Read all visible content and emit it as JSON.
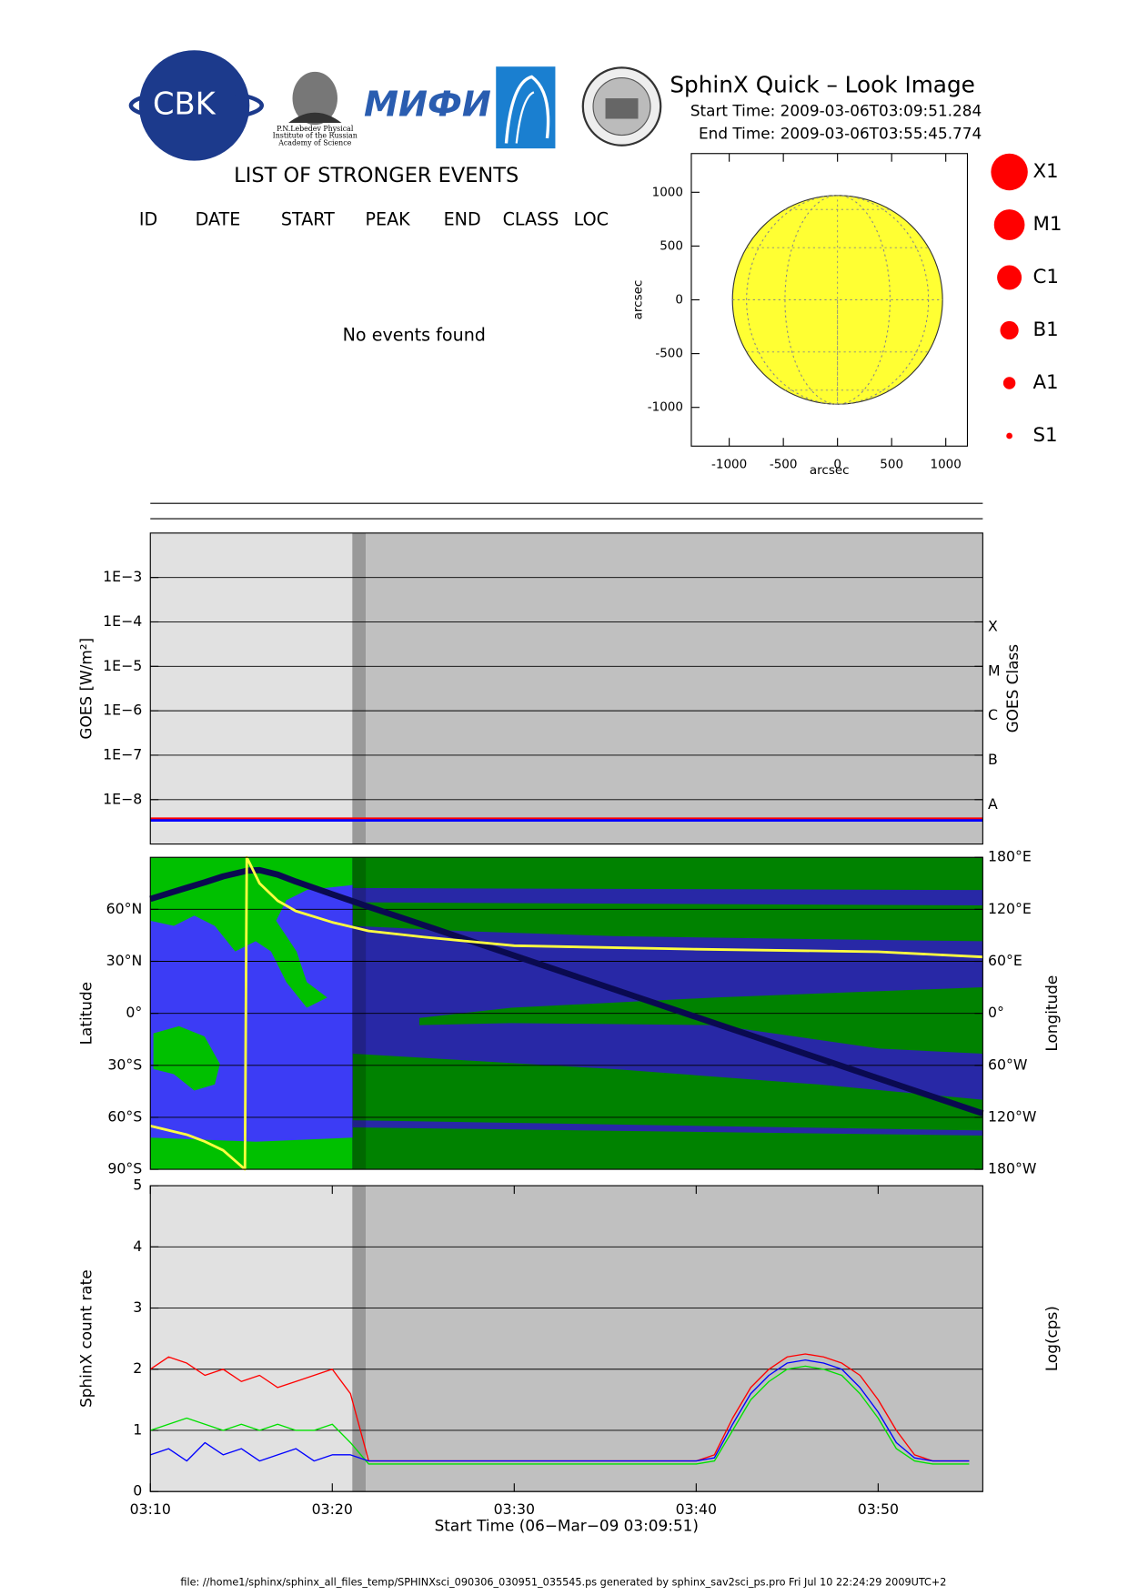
{
  "logos": {
    "cbk": "CBK",
    "lebedev": [
      "P.N.Lebedev Physical",
      "Institute of the Russian",
      "Academy of Science"
    ],
    "mifi": "МИФИ"
  },
  "header": {
    "title": "SphinX Quick – Look Image",
    "start": "Start Time: 2009-03-06T03:09:51.284",
    "end": "End Time: 2009-03-06T03:55:45.774"
  },
  "events": {
    "title": "LIST OF STRONGER EVENTS",
    "columns": [
      "ID",
      "DATE",
      "START",
      "PEAK",
      "END",
      "CLASS",
      "LOC"
    ],
    "message": "No events found"
  },
  "flare_legend": {
    "labels": [
      "X1",
      "M1",
      "C1",
      "B1",
      "A1",
      "S1"
    ],
    "color": "#ff0000"
  },
  "footer": "file: //home1/sphinx/sphinx_all_files_temp/SPHINXsci_090306_030951_035545.ps generated by sphinx_sav2sci_ps.pro Fri Jul 10 22:24:29 2009UTC+2",
  "chart_data": [
    {
      "type": "disk",
      "xlabel": "arcsec",
      "ylabel": "arcsec",
      "xlim": [
        -1350,
        1200
      ],
      "ylim": [
        -1360,
        1360
      ],
      "xticks": [
        -1000,
        -500,
        0,
        500,
        1000
      ],
      "yticks": [
        -1000,
        -500,
        0,
        500,
        1000
      ],
      "sun_radius": 970,
      "color": "#ffff33"
    },
    {
      "type": "line",
      "ylabel": "GOES [W/m²]",
      "y2label": "GOES Class",
      "log_y": true,
      "grid": true,
      "xlim": [
        10,
        55.75
      ],
      "ylim": [
        1e-09,
        0.01
      ],
      "yticks": [
        {
          "value": 1e-08,
          "label": "1E−8"
        },
        {
          "value": 1e-07,
          "label": "1E−7"
        },
        {
          "value": 1e-06,
          "label": "1E−6"
        },
        {
          "value": 1e-05,
          "label": "1E−5"
        },
        {
          "value": 0.0001,
          "label": "1E−4"
        },
        {
          "value": 0.001,
          "label": "1E−3"
        }
      ],
      "class_ticks": [
        {
          "value": 1e-08,
          "label": "A"
        },
        {
          "value": 1e-07,
          "label": "B"
        },
        {
          "value": 1e-06,
          "label": "C"
        },
        {
          "value": 1e-05,
          "label": "M"
        },
        {
          "value": 0.0001,
          "label": "X"
        }
      ],
      "shading": [
        {
          "start": 10,
          "end": 21.1,
          "color": "#e1e1e1"
        },
        {
          "start": 21.1,
          "end": 21.85,
          "color": "#999999"
        },
        {
          "start": 21.85,
          "end": 55.75,
          "color": "#c0c0c0"
        }
      ],
      "x": [
        10,
        20,
        30,
        40,
        50,
        55.75
      ],
      "series": [
        {
          "color": "#ff0000",
          "values": [
            3.7e-09,
            3.7e-09,
            3.7e-09,
            3.7e-09,
            3.7e-09,
            3.7e-09
          ]
        },
        {
          "color": "#0000ff",
          "values": [
            3.4e-09,
            3.4e-09,
            3.4e-09,
            3.4e-09,
            3.4e-09,
            3.4e-09
          ]
        }
      ]
    },
    {
      "type": "line",
      "ylabel": "Latitude",
      "y2label": "Longitude",
      "grid": true,
      "xlim": [
        10,
        55.75
      ],
      "ylim": [
        -90,
        90
      ],
      "y2lim": [
        -180,
        180
      ],
      "yticks": [
        {
          "value": -90,
          "label": "90°S"
        },
        {
          "value": -60,
          "label": "60°S"
        },
        {
          "value": -30,
          "label": "30°S"
        },
        {
          "value": 0,
          "label": "0°"
        },
        {
          "value": 30,
          "label": "30°N"
        },
        {
          "value": 60,
          "label": "60°N"
        }
      ],
      "y2ticks": [
        {
          "value": -180,
          "label": "180°W"
        },
        {
          "value": -120,
          "label": "120°W"
        },
        {
          "value": -60,
          "label": "60°W"
        },
        {
          "value": 0,
          "label": "0°"
        },
        {
          "value": 60,
          "label": "60°E"
        },
        {
          "value": 120,
          "label": "120°E"
        },
        {
          "value": 180,
          "label": "180°E"
        }
      ],
      "shading": [
        {
          "start": 21.1,
          "end": 21.85,
          "color": "#000000",
          "opacity": 0.45
        },
        {
          "start": 21.85,
          "end": 55.75,
          "color": "#000000",
          "opacity": 0.32
        }
      ],
      "x": [
        10,
        12,
        13,
        14,
        15.2,
        15.3,
        16,
        17,
        18,
        20,
        22,
        25,
        30,
        40,
        50,
        55.75
      ],
      "series": [
        {
          "color": "#0a0a50",
          "values": [
            66,
            72.5,
            75.6,
            79,
            82,
            82.3,
            82.6,
            80,
            76,
            68.7,
            61.5,
            51,
            33.3,
            -2.1,
            -37.5,
            -57.8
          ]
        },
        {
          "color": "#ffff40",
          "axis": "y2",
          "values": [
            -130,
            -140,
            -148,
            -158,
            -180,
            180,
            150,
            130,
            118,
            105,
            95,
            88,
            78,
            74,
            71,
            65
          ]
        }
      ]
    },
    {
      "type": "line",
      "ylabel": "SphinX count rate",
      "y2label": "Log(cps)",
      "xlabel": "Start Time (06−Mar−09 03:09:51)",
      "grid": true,
      "xlim": [
        10,
        55.75
      ],
      "ylim": [
        0,
        5
      ],
      "yticks": [
        0,
        1,
        2,
        3,
        4,
        5
      ],
      "xticks": [
        {
          "value": 10,
          "label": "03:10"
        },
        {
          "value": 20,
          "label": "03:20"
        },
        {
          "value": 30,
          "label": "03:30"
        },
        {
          "value": 40,
          "label": "03:40"
        },
        {
          "value": 50,
          "label": "03:50"
        }
      ],
      "shading": [
        {
          "start": 10,
          "end": 21.1,
          "color": "#e1e1e1"
        },
        {
          "start": 21.1,
          "end": 21.85,
          "color": "#999999"
        },
        {
          "start": 21.85,
          "end": 55.75,
          "color": "#c0c0c0"
        }
      ],
      "x": [
        10,
        11,
        12,
        13,
        14,
        15,
        16,
        17,
        18,
        19,
        20,
        21,
        22,
        23,
        24,
        25,
        26,
        27,
        28,
        29,
        30,
        31,
        32,
        33,
        34,
        35,
        36,
        37,
        38,
        39,
        40,
        41,
        42,
        43,
        44,
        45,
        46,
        47,
        48,
        49,
        50,
        51,
        52,
        53,
        54,
        55
      ],
      "series": [
        {
          "color": "#ff0000",
          "values": [
            2.0,
            2.2,
            2.1,
            1.9,
            2.0,
            1.8,
            1.9,
            1.7,
            1.8,
            1.9,
            2.0,
            1.6,
            0.5,
            0.5,
            0.5,
            0.5,
            0.5,
            0.5,
            0.5,
            0.5,
            0.5,
            0.5,
            0.5,
            0.5,
            0.5,
            0.5,
            0.5,
            0.5,
            0.5,
            0.5,
            0.5,
            0.6,
            1.2,
            1.7,
            2.0,
            2.2,
            2.25,
            2.2,
            2.1,
            1.9,
            1.5,
            1.0,
            0.6,
            0.5,
            0.5,
            0.5
          ]
        },
        {
          "color": "#00e000",
          "values": [
            1.0,
            1.1,
            1.2,
            1.1,
            1.0,
            1.1,
            1.0,
            1.1,
            1.0,
            1.0,
            1.1,
            0.8,
            0.45,
            0.45,
            0.45,
            0.45,
            0.45,
            0.45,
            0.45,
            0.45,
            0.45,
            0.45,
            0.45,
            0.45,
            0.45,
            0.45,
            0.45,
            0.45,
            0.45,
            0.45,
            0.45,
            0.5,
            1.0,
            1.5,
            1.8,
            2.0,
            2.05,
            2.0,
            1.9,
            1.6,
            1.2,
            0.7,
            0.5,
            0.45,
            0.45,
            0.45
          ]
        },
        {
          "color": "#0000ff",
          "values": [
            0.6,
            0.7,
            0.5,
            0.8,
            0.6,
            0.7,
            0.5,
            0.6,
            0.7,
            0.5,
            0.6,
            0.6,
            0.5,
            0.5,
            0.5,
            0.5,
            0.5,
            0.5,
            0.5,
            0.5,
            0.5,
            0.5,
            0.5,
            0.5,
            0.5,
            0.5,
            0.5,
            0.5,
            0.5,
            0.5,
            0.5,
            0.55,
            1.1,
            1.6,
            1.9,
            2.1,
            2.15,
            2.1,
            2.0,
            1.7,
            1.3,
            0.8,
            0.55,
            0.5,
            0.5,
            0.5
          ]
        }
      ]
    }
  ]
}
